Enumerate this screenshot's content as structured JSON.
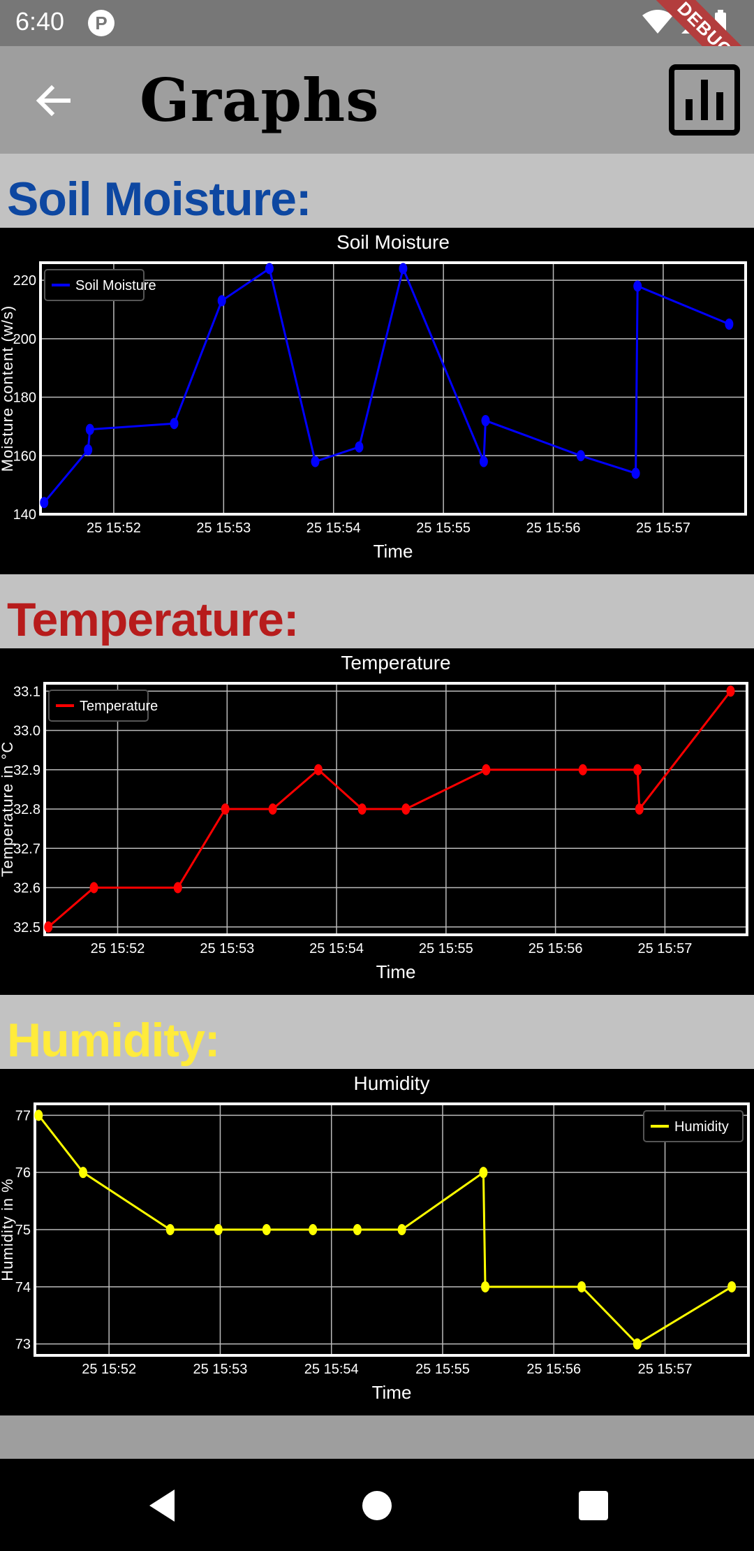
{
  "status_bar": {
    "time": "6:40",
    "app_icon_letter": "P",
    "debug_label": "DEBUG"
  },
  "app_bar": {
    "title": "Graphs",
    "back_icon": "arrow-back-icon",
    "action_icon": "bar-chart-icon"
  },
  "sections": [
    {
      "heading": "Soil Moisture:",
      "color": "#0d47a1"
    },
    {
      "heading": "Temperature:",
      "color": "#b71c1c"
    },
    {
      "heading": "Humidity:",
      "color": "#ffeb3b"
    }
  ],
  "chart_data": [
    {
      "type": "line",
      "title": "Soil Moisture",
      "xlabel": "Time",
      "ylabel": "Moisture content (w/s)",
      "legend": "top-left",
      "grid": true,
      "color": "#0000ff",
      "x_tick_labels": [
        "25 15:52",
        "25 15:53",
        "25 15:54",
        "25 15:55",
        "25 15:56",
        "25 15:57"
      ],
      "x_ticks": [
        "15:52",
        "15:53",
        "15:54",
        "15:55",
        "15:56",
        "15:57"
      ],
      "xlim": [
        "15:51:20",
        "15:57:45"
      ],
      "ylim": [
        140,
        226
      ],
      "y_ticks": [
        140,
        160,
        180,
        200,
        220
      ],
      "series": [
        {
          "name": "Soil Moisture",
          "x": [
            "15:51:22",
            "15:51:46",
            "15:51:47",
            "15:52:33",
            "15:52:59",
            "15:53:25",
            "15:53:50",
            "15:54:14",
            "15:54:38",
            "15:55:22",
            "15:55:23",
            "15:56:15",
            "15:56:45",
            "15:56:46",
            "15:57:36"
          ],
          "y": [
            144,
            162,
            169,
            171,
            213,
            224,
            158,
            163,
            224,
            158,
            172,
            160,
            154,
            218,
            205
          ]
        }
      ]
    },
    {
      "type": "line",
      "title": "Temperature",
      "xlabel": "Time",
      "ylabel": "Temperature in °C",
      "legend": "top-left",
      "grid": true,
      "color": "#ff0000",
      "x_tick_labels": [
        "25 15:52",
        "25 15:53",
        "25 15:54",
        "25 15:55",
        "25 15:56",
        "25 15:57"
      ],
      "x_ticks": [
        "15:52",
        "15:53",
        "15:54",
        "15:55",
        "15:56",
        "15:57"
      ],
      "xlim": [
        "15:51:20",
        "15:57:45"
      ],
      "ylim": [
        32.48,
        33.12
      ],
      "y_ticks": [
        32.5,
        32.6,
        32.7,
        32.8,
        32.9,
        33.0,
        33.1
      ],
      "series": [
        {
          "name": "Temperature",
          "x": [
            "15:51:22",
            "15:51:47",
            "15:52:33",
            "15:52:59",
            "15:53:25",
            "15:53:50",
            "15:54:14",
            "15:54:38",
            "15:55:22",
            "15:56:15",
            "15:56:45",
            "15:56:46",
            "15:57:36"
          ],
          "y": [
            32.5,
            32.6,
            32.6,
            32.8,
            32.8,
            32.9,
            32.8,
            32.8,
            32.9,
            32.9,
            32.9,
            32.8,
            33.1
          ]
        }
      ]
    },
    {
      "type": "line",
      "title": "Humidity",
      "xlabel": "Time",
      "ylabel": "Humidity in %",
      "legend": "top-right",
      "grid": true,
      "color": "#ffff00",
      "x_tick_labels": [
        "25 15:52",
        "25 15:53",
        "25 15:54",
        "25 15:55",
        "25 15:56",
        "25 15:57"
      ],
      "x_ticks": [
        "15:52",
        "15:53",
        "15:54",
        "15:55",
        "15:56",
        "15:57"
      ],
      "xlim": [
        "15:51:20",
        "15:57:45"
      ],
      "ylim": [
        72.8,
        77.2
      ],
      "y_ticks": [
        73,
        74,
        75,
        76,
        77
      ],
      "series": [
        {
          "name": "Humidity",
          "x": [
            "15:51:22",
            "15:51:46",
            "15:52:33",
            "15:52:59",
            "15:53:25",
            "15:53:50",
            "15:54:14",
            "15:54:38",
            "15:55:22",
            "15:55:23",
            "15:56:15",
            "15:56:45",
            "15:57:36"
          ],
          "y": [
            77,
            76,
            75,
            75,
            75,
            75,
            75,
            75,
            76,
            74,
            74,
            73,
            74
          ]
        }
      ]
    }
  ]
}
